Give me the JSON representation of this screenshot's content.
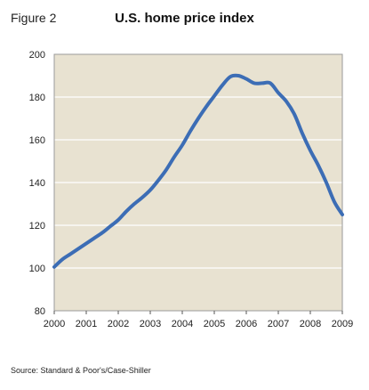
{
  "figure": {
    "label": "Figure 2",
    "source": "Source: Standard & Poor's/Case-Shiller"
  },
  "colors": {
    "plot_background": "#E8E2D1",
    "line": "#3C6DB5",
    "grid": "#FFFFFF",
    "frame": "#9A9A9A"
  },
  "chart_data": {
    "type": "line",
    "title": "U.S. home price index",
    "xlabel": "",
    "ylabel": "",
    "xlim": [
      2000,
      2009
    ],
    "ylim": [
      80,
      200
    ],
    "x_ticks": [
      "2000",
      "2001",
      "2002",
      "2003",
      "2004",
      "2005",
      "2006",
      "2007",
      "2008",
      "2009"
    ],
    "y_ticks": [
      "80",
      "100",
      "120",
      "140",
      "160",
      "180",
      "200"
    ],
    "grid": "horizontal",
    "series": [
      {
        "x": [
          2000.0,
          2000.25,
          2000.5,
          2000.75,
          2001.0,
          2001.25,
          2001.5,
          2001.75,
          2002.0,
          2002.25,
          2002.5,
          2002.75,
          2003.0,
          2003.25,
          2003.5,
          2003.75,
          2004.0,
          2004.25,
          2004.5,
          2004.75,
          2005.0,
          2005.25,
          2005.5,
          2005.75,
          2006.0,
          2006.25,
          2006.5,
          2006.75,
          2007.0,
          2007.25,
          2007.5,
          2007.75,
          2008.0,
          2008.25,
          2008.5,
          2008.75,
          2009.0
        ],
        "values": [
          100.5,
          104,
          106.5,
          109,
          111.5,
          114,
          116.5,
          119.5,
          122.5,
          126.5,
          130,
          133,
          136.5,
          141,
          146,
          152,
          157.5,
          164,
          170,
          175.5,
          180.5,
          185.5,
          189.5,
          190,
          188.5,
          186.5,
          186.5,
          186.5,
          182,
          178,
          172,
          163,
          155,
          148,
          140,
          131,
          125
        ]
      }
    ]
  }
}
